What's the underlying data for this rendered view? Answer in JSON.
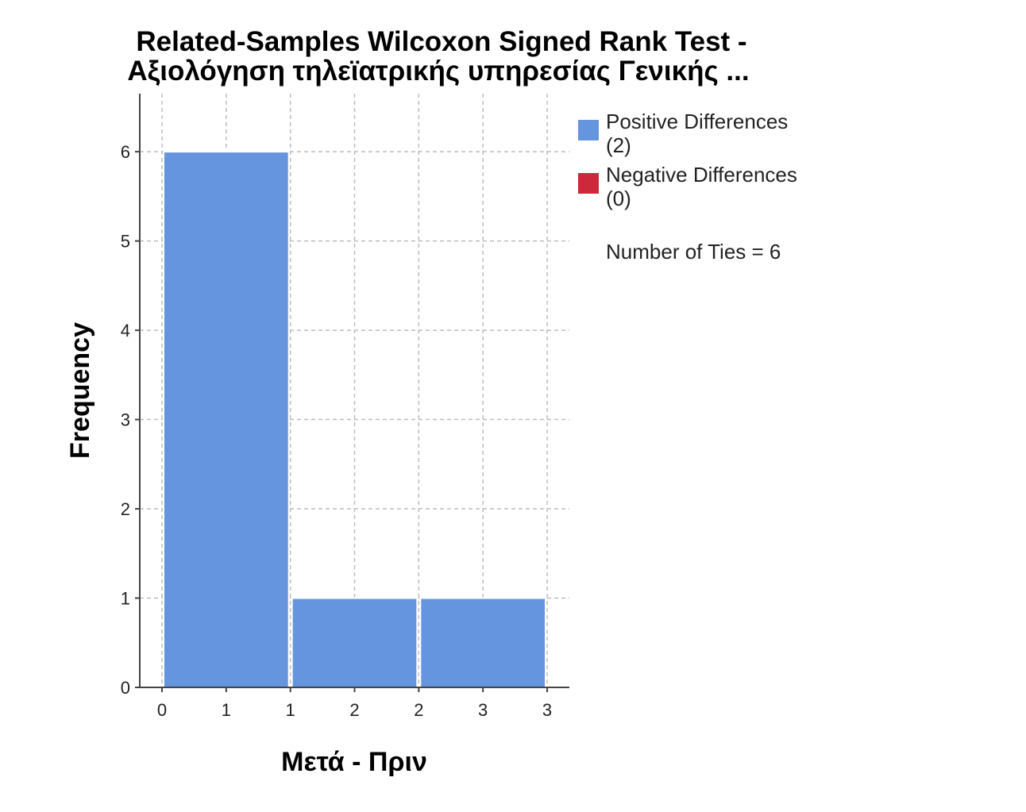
{
  "chart_data": {
    "type": "bar",
    "title": [
      "Related-Samples Wilcoxon Signed Rank Test -",
      "Αξιολόγηση τηλεϊατρικής υπηρεσίας Γενικής ..."
    ],
    "xlabel": "Μετά - Πριν",
    "ylabel": "Frequency",
    "x_tick_labels": [
      "0",
      "1",
      "1",
      "2",
      "2",
      "3",
      "3"
    ],
    "y_ticks": [
      "0",
      "1",
      "2",
      "3",
      "4",
      "5",
      "6"
    ],
    "ylim": [
      0,
      6.65
    ],
    "bins": [
      {
        "from": 0,
        "to": 1,
        "value": 6
      },
      {
        "from": 1,
        "to": 2,
        "value": 1
      },
      {
        "from": 2,
        "to": 3,
        "value": 1
      }
    ],
    "grid": true,
    "legend": {
      "position": "right",
      "items": [
        {
          "name": "Positive Differences",
          "count": "(2)",
          "color": "#6595de"
        },
        {
          "name": "Negative Differences",
          "count": "(0)",
          "color": "#cc2a3b"
        }
      ],
      "note": "Number of Ties = 6"
    },
    "colors": {
      "positive": "#6595de",
      "negative": "#cc2a3b",
      "bar_outline": "#ffffff"
    }
  }
}
